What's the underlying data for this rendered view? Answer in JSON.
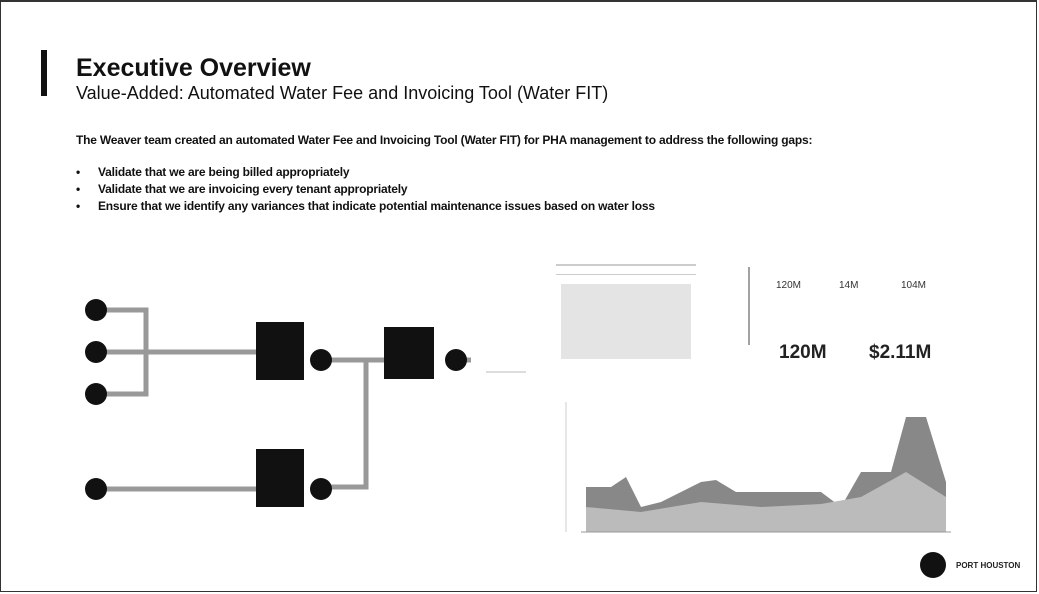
{
  "header": {
    "title": "Executive Overview",
    "subtitle": "Value-Added: Automated Water Fee and Invoicing Tool (Water FIT)"
  },
  "body": {
    "intro": "The Weaver team created an automated Water Fee and Invoicing Tool (Water FIT) for PHA management to address the following gaps:",
    "bullets": [
      "Validate that we are being billed appropriately",
      "Validate that we are invoicing every tenant appropriately",
      "Ensure that we identify any variances that indicate potential maintenance issues based on water loss"
    ]
  },
  "kpis": {
    "small": [
      "120M",
      "14M",
      "104M"
    ],
    "large": [
      "120M",
      "$2.11M"
    ]
  },
  "logo": {
    "text": "PORT HOUSTON"
  }
}
